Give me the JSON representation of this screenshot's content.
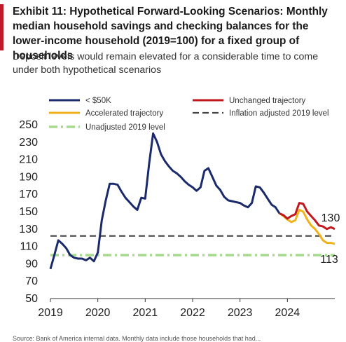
{
  "header": {
    "title": "Exhibit 11: Hypothetical Forward-Looking Scenarios: Monthly median household savings and checking balances for the lower-income household (2019=100) for a fixed group of households",
    "subtitle": "Deposit levels would remain elevated for a considerable time to come under both hypothetical scenarios"
  },
  "footer": {
    "source": "Source: Bank of America internal data. Monthly data include those households that had..."
  },
  "chart_data": {
    "type": "line",
    "title": "",
    "xlabel": "",
    "ylabel": "",
    "xlim": [
      2019,
      2025
    ],
    "ylim": [
      50,
      250
    ],
    "x_ticks": [
      "2019",
      "2020",
      "2021",
      "2022",
      "2023",
      "2024"
    ],
    "y_ticks": [
      250,
      230,
      210,
      190,
      170,
      150,
      130,
      110,
      90,
      70,
      50
    ],
    "grid": false,
    "legend_position": "top",
    "annotations": [
      {
        "text": "130",
        "x": 2025.0,
        "y": 130,
        "color": "#1a1a1a"
      },
      {
        "text": "113",
        "x": 2025.0,
        "y": 113,
        "color": "#1a1a1a"
      }
    ],
    "series": [
      {
        "name": "< $50K",
        "color": "#1b2a6b",
        "style": "solid",
        "x": [
          2019.0,
          2019.083,
          2019.167,
          2019.25,
          2019.333,
          2019.417,
          2019.5,
          2019.583,
          2019.667,
          2019.75,
          2019.833,
          2019.917,
          2020.0,
          2020.083,
          2020.167,
          2020.25,
          2020.333,
          2020.417,
          2020.5,
          2020.583,
          2020.667,
          2020.75,
          2020.833,
          2020.917,
          2021.0,
          2021.083,
          2021.167,
          2021.25,
          2021.333,
          2021.417,
          2021.5,
          2021.583,
          2021.667,
          2021.75,
          2021.833,
          2021.917,
          2022.0,
          2022.083,
          2022.167,
          2022.25,
          2022.333,
          2022.417,
          2022.5,
          2022.583,
          2022.667,
          2022.75,
          2022.833,
          2022.917,
          2023.0,
          2023.083,
          2023.167,
          2023.25,
          2023.333,
          2023.417,
          2023.5,
          2023.583,
          2023.667,
          2023.75,
          2023.833
        ],
        "y": [
          84,
          100,
          117,
          113,
          108,
          100,
          97,
          96,
          96,
          94,
          97,
          93,
          103,
          140,
          163,
          182,
          182,
          181,
          173,
          166,
          161,
          156,
          152,
          166,
          165,
          205,
          240,
          230,
          216,
          208,
          202,
          197,
          194,
          190,
          185,
          181,
          178,
          174,
          178,
          197,
          200,
          190,
          180,
          175,
          167,
          163,
          162,
          161,
          160,
          157,
          155,
          160,
          179,
          178,
          172,
          165,
          158,
          155,
          148
        ]
      },
      {
        "name": "Unchanged trajectory",
        "color": "#c0181e",
        "style": "solid",
        "x": [
          2023.833,
          2023.917,
          2024.0,
          2024.083,
          2024.167,
          2024.25,
          2024.333,
          2024.417,
          2024.5,
          2024.583,
          2024.667,
          2024.75,
          2024.833,
          2024.917,
          2025.0
        ],
        "y": [
          148,
          146,
          142,
          145,
          147,
          160,
          159,
          150,
          145,
          140,
          134,
          133,
          130,
          132,
          130
        ]
      },
      {
        "name": "Accelerated trajectory",
        "color": "#f0b21c",
        "style": "solid",
        "x": [
          2023.833,
          2023.917,
          2024.0,
          2024.083,
          2024.167,
          2024.25,
          2024.333,
          2024.417,
          2024.5,
          2024.583,
          2024.667,
          2024.75,
          2024.833,
          2024.917,
          2025.0
        ],
        "y": [
          148,
          145,
          141,
          138,
          140,
          152,
          150,
          141,
          134,
          130,
          124,
          117,
          114,
          114,
          113
        ]
      },
      {
        "name": "Inflation adjusted 2019 level",
        "color": "#444444",
        "style": "dashed",
        "x": [
          2019.0,
          2025.0
        ],
        "y": [
          122,
          122
        ]
      },
      {
        "name": "Unadjusted 2019 level",
        "color": "#a7d98e",
        "style": "dash-dot",
        "x": [
          2019.0,
          2025.0
        ],
        "y": [
          100,
          100
        ]
      }
    ]
  }
}
